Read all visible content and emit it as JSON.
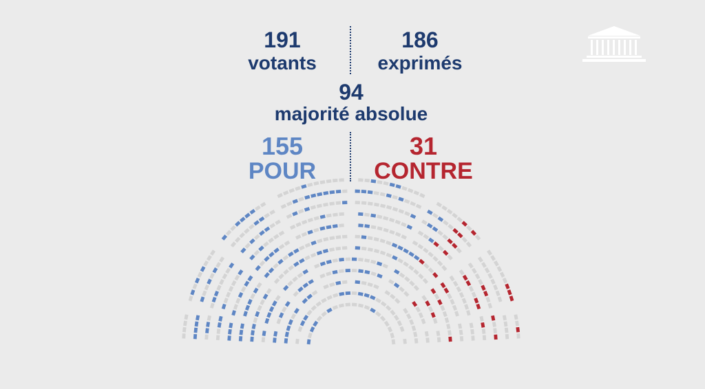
{
  "votants": {
    "count": "191",
    "label": "votants"
  },
  "exprimes": {
    "count": "186",
    "label": "exprimés"
  },
  "majorite": {
    "count": "94",
    "label": "majorité absolue"
  },
  "pour": {
    "count": "155",
    "label": "POUR"
  },
  "contre": {
    "count": "31",
    "label": "CONTRE"
  },
  "colors": {
    "text": "#1d3a6e",
    "pour": "#5e86c4",
    "contre": "#b5252f",
    "empty": "#d4d4d4",
    "background": "#ebebeb"
  },
  "icons": {
    "logo": "assemblee-nationale-building-icon"
  }
}
